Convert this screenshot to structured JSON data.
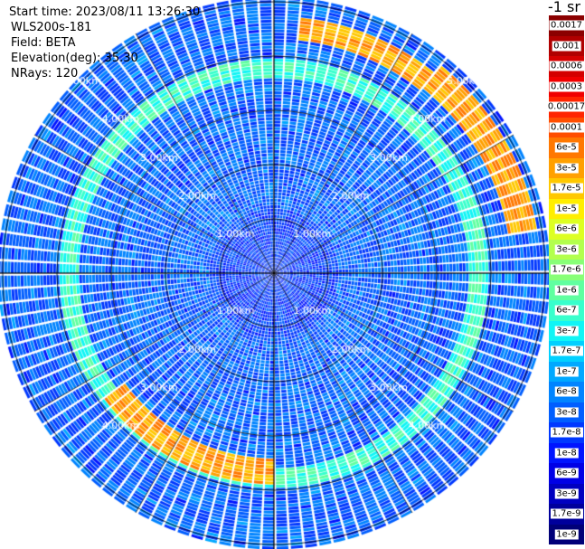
{
  "info": {
    "start_time": "Start time: 2023/08/11 13:26:30",
    "instrument": "WLS200s-181",
    "field": "Field: BETA",
    "elevation": "Elevation(deg): 35.30",
    "nrays": "NRays: 120"
  },
  "colorbar": {
    "unit_title": "-1 sr",
    "levels": [
      "0.0017",
      "0.001",
      "0.0006",
      "0.0003",
      "0.00017",
      "0.0001",
      "6e-5",
      "3e-5",
      "1.7e-5",
      "1e-5",
      "6e-6",
      "3e-6",
      "1.7e-6",
      "1e-6",
      "6e-7",
      "3e-7",
      "1.7e-7",
      "1e-7",
      "6e-8",
      "3e-8",
      "1.7e-8",
      "1e-8",
      "6e-9",
      "3e-9",
      "1.7e-9",
      "1e-9"
    ],
    "colors": [
      "#8b0000",
      "#b00000",
      "#d40000",
      "#f00000",
      "#ff2400",
      "#ff4e00",
      "#ff7800",
      "#ffa000",
      "#ffc800",
      "#ffee00",
      "#ddff22",
      "#b3ff4d",
      "#88ff77",
      "#60ffa0",
      "#38ffcc",
      "#10f5f5",
      "#00d0ff",
      "#00a8ff",
      "#0084ff",
      "#005eff",
      "#0038ff",
      "#0014ff",
      "#0000e6",
      "#0000c0",
      "#00009c",
      "#000078"
    ]
  },
  "chart_data": {
    "type": "heatmap",
    "projection": "polar PPI",
    "field": "BETA",
    "nrays": 120,
    "range_unit": "km",
    "range_ring_labels": [
      "1.00km",
      "2.00km",
      "3.00km",
      "4.00km",
      "5.00km"
    ],
    "range_rings_km": [
      1,
      2,
      3,
      4,
      5
    ],
    "max_range_km": 5.1,
    "azimuth_spokes_deg": [
      0,
      30,
      60,
      90,
      120,
      150,
      180,
      210,
      240,
      270,
      300,
      330
    ],
    "scale": "log",
    "value_range": [
      1e-09,
      0.0017
    ],
    "background_level": "3e-8",
    "features": [
      {
        "description": "enhanced ring",
        "range_km": [
          3.6,
          3.95
        ],
        "level": "6e-7"
      },
      {
        "description": "echo band NNE",
        "azimuth_deg": [
          5,
          40
        ],
        "range_km": [
          4.35,
          4.75
        ],
        "level": "3e-5"
      },
      {
        "description": "echo band ENE",
        "azimuth_deg": [
          40,
          80
        ],
        "range_km": [
          4.4,
          4.9
        ],
        "level": "3e-5"
      },
      {
        "description": "echo band SW",
        "azimuth_deg": [
          180,
          235
        ],
        "range_km": [
          3.45,
          3.9
        ],
        "level": "3e-5"
      }
    ]
  }
}
